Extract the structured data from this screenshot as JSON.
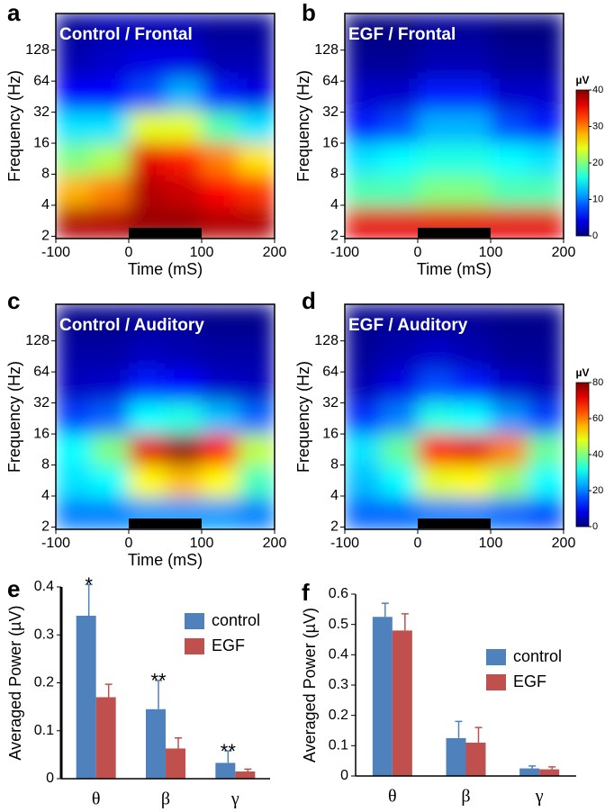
{
  "chart_data": [
    {
      "type": "heatmap",
      "panel_label": "a",
      "title": "Control / Frontal",
      "xlabel": "Time (mS)",
      "ylabel": "Frequency (Hz)",
      "xlim": [
        -100,
        200
      ],
      "xticks": [
        -100,
        0,
        100,
        200
      ],
      "ylim": [
        1.9,
        290
      ],
      "log_y": true,
      "yticks": [
        2,
        4,
        8,
        16,
        32,
        64,
        128
      ],
      "colormap": "jet",
      "zlim": [
        0,
        40
      ],
      "values": [
        [
          38,
          38,
          39,
          39,
          38,
          38
        ],
        [
          28,
          30,
          38,
          37,
          35,
          33
        ],
        [
          20,
          22,
          36,
          34,
          30,
          26
        ],
        [
          14,
          14,
          24,
          24,
          18,
          14
        ],
        [
          5,
          5,
          8,
          12,
          6,
          4
        ],
        [
          2,
          3,
          4,
          4,
          2,
          2
        ],
        [
          1,
          2,
          2,
          2,
          1,
          1
        ]
      ]
    },
    {
      "type": "heatmap",
      "panel_label": "b",
      "title": "EGF / Frontal",
      "xlabel": "Time (mS)",
      "ylabel": "Frequency (Hz)",
      "xlim": [
        -100,
        200
      ],
      "xticks": [
        -100,
        0,
        100,
        200
      ],
      "ylim": [
        1.9,
        290
      ],
      "log_y": true,
      "yticks": [
        2,
        4,
        8,
        16,
        32,
        64,
        128
      ],
      "colormap": "jet",
      "zlim": [
        0,
        40
      ],
      "colorbar": {
        "label": "µV",
        "ticks": [
          0,
          10,
          20,
          30,
          40
        ]
      },
      "values": [
        [
          36,
          36,
          36,
          36,
          36,
          36
        ],
        [
          18,
          18,
          20,
          20,
          18,
          18
        ],
        [
          14,
          15,
          16,
          16,
          15,
          14
        ],
        [
          6,
          8,
          12,
          12,
          8,
          6
        ],
        [
          3,
          3,
          6,
          6,
          3,
          3
        ],
        [
          1,
          1,
          2,
          2,
          1,
          1
        ],
        [
          0,
          0,
          1,
          1,
          0,
          0
        ]
      ]
    },
    {
      "type": "heatmap",
      "panel_label": "c",
      "title": "Control / Auditory",
      "xlabel": "Time (mS)",
      "ylabel": "Frequency (Hz)",
      "xlim": [
        -100,
        200
      ],
      "xticks": [
        -100,
        0,
        100,
        200
      ],
      "ylim": [
        1.9,
        290
      ],
      "log_y": true,
      "yticks": [
        2,
        4,
        8,
        16,
        32,
        64,
        128
      ],
      "colormap": "jet",
      "zlim": [
        0,
        80
      ],
      "values": [
        [
          20,
          20,
          22,
          22,
          22,
          20
        ],
        [
          28,
          30,
          50,
          55,
          50,
          35
        ],
        [
          30,
          40,
          72,
          78,
          70,
          45
        ],
        [
          15,
          18,
          30,
          32,
          25,
          18
        ],
        [
          5,
          6,
          12,
          10,
          6,
          5
        ],
        [
          3,
          3,
          5,
          4,
          3,
          3
        ],
        [
          1,
          1,
          2,
          2,
          1,
          1
        ]
      ]
    },
    {
      "type": "heatmap",
      "panel_label": "d",
      "title": "EGF / Auditory",
      "ylabel": "Frequency (Hz)",
      "xlim": [
        -100,
        200
      ],
      "xticks": [
        -100,
        0,
        100,
        200
      ],
      "ylim": [
        1.9,
        290
      ],
      "log_y": true,
      "yticks": [
        2,
        4,
        8,
        16,
        32,
        64,
        128
      ],
      "colormap": "jet",
      "zlim": [
        0,
        80
      ],
      "colorbar": {
        "label": "µV",
        "ticks": [
          0,
          20,
          40,
          60,
          80
        ]
      },
      "values": [
        [
          18,
          18,
          20,
          20,
          18,
          16
        ],
        [
          25,
          30,
          48,
          50,
          42,
          30
        ],
        [
          28,
          38,
          70,
          72,
          60,
          38
        ],
        [
          14,
          20,
          32,
          30,
          22,
          15
        ],
        [
          4,
          8,
          16,
          12,
          6,
          4
        ],
        [
          2,
          4,
          6,
          4,
          2,
          2
        ],
        [
          1,
          2,
          2,
          2,
          1,
          1
        ]
      ]
    },
    {
      "type": "bar",
      "panel_label": "e",
      "ylabel": "Averaged Power (µV)",
      "categories": [
        "θ",
        "β",
        "γ"
      ],
      "ylim": [
        0,
        0.4
      ],
      "yticks": [
        0,
        0.1,
        0.2,
        0.3,
        0.4
      ],
      "legend": "upper right",
      "series": [
        {
          "name": "control",
          "color": "#4f81bd",
          "values": [
            0.34,
            0.145,
            0.033
          ],
          "errors": [
            0.065,
            0.06,
            0.025
          ]
        },
        {
          "name": "EGF",
          "color": "#c0504d",
          "values": [
            0.17,
            0.063,
            0.015
          ],
          "errors": [
            0.027,
            0.022,
            0.005
          ]
        }
      ],
      "annotations": [
        "*",
        "**",
        "**"
      ]
    },
    {
      "type": "bar",
      "panel_label": "f",
      "ylabel": "Averaged Power (µV)",
      "categories": [
        "θ",
        "β",
        "γ"
      ],
      "ylim": [
        0,
        0.6
      ],
      "yticks": [
        0,
        0.1,
        0.2,
        0.3,
        0.4,
        0.5,
        0.6
      ],
      "legend": "center right",
      "series": [
        {
          "name": "control",
          "color": "#4f81bd",
          "values": [
            0.525,
            0.125,
            0.025
          ],
          "errors": [
            0.045,
            0.055,
            0.008
          ]
        },
        {
          "name": "EGF",
          "color": "#c0504d",
          "values": [
            0.48,
            0.11,
            0.022
          ],
          "errors": [
            0.055,
            0.05,
            0.008
          ]
        }
      ]
    }
  ]
}
